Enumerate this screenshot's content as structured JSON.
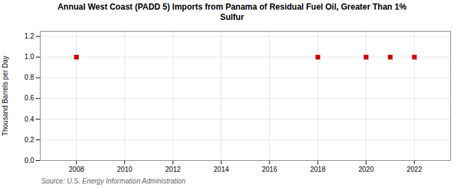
{
  "chart_data": {
    "type": "scatter",
    "title": "Annual West Coast (PADD 5) Imports from Panama of Residual Fuel Oil, Greater Than 1%\nSulfur",
    "ylabel": "Thousand Barrels per Day",
    "source": "Source: U.S. Energy Information Administration",
    "x": [
      2008,
      2018,
      2020,
      2021,
      2022
    ],
    "values": [
      1.0,
      1.0,
      1.0,
      1.0,
      1.0
    ],
    "color": "#cc0000",
    "marker": "square",
    "xlim": [
      2006.5,
      2023.5
    ],
    "xticks": [
      2008,
      2010,
      2012,
      2014,
      2016,
      2018,
      2020,
      2022
    ],
    "ylim": [
      0.0,
      1.25
    ],
    "yticks": [
      {
        "value": 0.0,
        "label": "0.0"
      },
      0.2,
      0.4,
      0.6,
      0.8,
      {
        "value": 1.0,
        "label": "1.0"
      },
      1.2
    ],
    "grid": true
  }
}
